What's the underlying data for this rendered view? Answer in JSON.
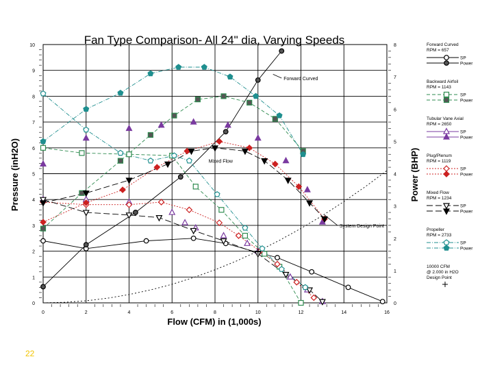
{
  "slide": {
    "number": "22"
  },
  "chart_data": {
    "type": "line",
    "title": "Fan Type Comparison- All 24\" dia, Varying Speeds",
    "xlabel": "Flow (CFM) in (1,000s)",
    "ylabel": "Pressure (inH2O)",
    "y2label": "Power (BHP)",
    "xlim": [
      0,
      16
    ],
    "ylim": [
      0,
      10
    ],
    "y2lim": [
      0,
      8
    ],
    "xticks": [
      "0",
      "2",
      "4",
      "6",
      "8",
      "10",
      "12",
      "14",
      "16"
    ],
    "yticks": [
      "0",
      "1",
      "2",
      "3",
      "4",
      "5",
      "6",
      "7",
      "8",
      "9",
      "10"
    ],
    "y2ticks": [
      "0",
      "1",
      "2",
      "3",
      "4",
      "5",
      "6",
      "7",
      "8"
    ],
    "grid": true,
    "legend_position": "right",
    "colors": {
      "forward": "#000000",
      "backward": "#2e8b4f",
      "tubular": "#7a3aa0",
      "plug": "#cc2020",
      "mixed": "#000000",
      "propeller": "#1f8f8f",
      "system": "#000000"
    },
    "series": [
      {
        "key": "fc_sp",
        "axis": "left",
        "x": [
          0,
          2,
          4.8,
          7,
          8.5,
          10,
          10.9,
          12.5,
          14.2,
          15.8
        ],
        "y": [
          2.4,
          2.1,
          2.4,
          2.5,
          2.3,
          1.95,
          1.75,
          1.2,
          0.6,
          0.05
        ]
      },
      {
        "key": "fc_power",
        "axis": "right",
        "x": [
          0,
          2,
          4.3,
          6.4,
          8.5,
          10,
          11.1
        ],
        "y": [
          0.5,
          1.8,
          2.8,
          3.9,
          5.3,
          6.9,
          7.8
        ]
      },
      {
        "key": "ba_sp",
        "axis": "left",
        "x": [
          0,
          1.8,
          4,
          6,
          7.1,
          8.3,
          9.4,
          10.3,
          11,
          12
        ],
        "y": [
          6.0,
          5.8,
          5.75,
          5.7,
          4.5,
          3.6,
          2.6,
          1.9,
          1.4,
          0
        ]
      },
      {
        "key": "ba_power",
        "axis": "right",
        "x": [
          0,
          1.8,
          3.6,
          5,
          6.1,
          7.2,
          8.4,
          9.6,
          10.8,
          12.1
        ],
        "y": [
          2.3,
          3.4,
          4.4,
          5.2,
          5.8,
          6.3,
          6.4,
          6.2,
          5.7,
          4.7
        ]
      },
      {
        "key": "tva_sp",
        "axis": "left",
        "x": [
          0,
          2,
          4,
          6,
          6.6,
          7.1,
          8.4,
          9.5,
          10,
          11.5,
          12.3,
          13
        ],
        "y": [
          4.0,
          4.0,
          3.9,
          3.5,
          3.1,
          2.9,
          2.6,
          2.3,
          2.0,
          1.0,
          0.5,
          0.05
        ]
      },
      {
        "key": "tva_power",
        "axis": "right",
        "x": [
          0,
          2,
          4,
          5.5,
          7,
          8.6,
          10,
          11.3,
          12.3,
          13
        ],
        "y": [
          4.3,
          5.1,
          5.4,
          5.5,
          5.6,
          5.5,
          5.1,
          4.4,
          3.5,
          2.5
        ]
      },
      {
        "key": "pp_sp",
        "axis": "left",
        "x": [
          0,
          2,
          4,
          5.5,
          6.8,
          8.2,
          9.1,
          10.1,
          10.9,
          11.8,
          12.6
        ],
        "y": [
          3.9,
          3.8,
          3.8,
          3.9,
          3.6,
          3.1,
          2.6,
          2.0,
          1.5,
          0.8,
          0.2
        ]
      },
      {
        "key": "pp_power",
        "axis": "right",
        "x": [
          0,
          2,
          3.7,
          5.3,
          6.7,
          8.2,
          9.6,
          10.8,
          11.9,
          13.1
        ],
        "y": [
          2.5,
          3.1,
          3.5,
          4.2,
          4.7,
          5.0,
          4.8,
          4.3,
          3.6,
          2.6
        ]
      },
      {
        "key": "mf_sp",
        "axis": "left",
        "x": [
          0,
          2,
          4,
          5.4,
          7,
          8.4,
          10,
          11.3,
          12.4,
          13
        ],
        "y": [
          4.0,
          3.5,
          3.4,
          3.3,
          2.8,
          2.4,
          1.9,
          1.1,
          0.5,
          0.05
        ]
      },
      {
        "key": "mf_power",
        "axis": "right",
        "x": [
          0,
          2,
          4,
          5.8,
          6.9,
          8,
          9.4,
          10.3,
          11.4,
          12.4,
          13.1
        ],
        "y": [
          3.1,
          3.4,
          3.8,
          4.3,
          4.7,
          4.8,
          4.7,
          4.4,
          3.8,
          3.1,
          2.6
        ]
      },
      {
        "key": "prop_sp",
        "axis": "left",
        "x": [
          0,
          2,
          3.6,
          5,
          6.1,
          6.8,
          8.1,
          9.4,
          10.2,
          11.1,
          12.2
        ],
        "y": [
          8.1,
          6.7,
          5.8,
          5.5,
          5.7,
          5.5,
          4.2,
          2.9,
          2.1,
          1.3,
          0.6
        ]
      },
      {
        "key": "prop_power",
        "axis": "right",
        "x": [
          0,
          2,
          3.6,
          5,
          6.3,
          7.5,
          8.7,
          9.9,
          11,
          12.1
        ],
        "y": [
          5.0,
          6.0,
          6.5,
          7.1,
          7.3,
          7.3,
          7.0,
          6.4,
          5.8,
          4.6
        ]
      },
      {
        "key": "system",
        "axis": "left",
        "x": [
          0,
          1,
          2,
          3,
          4,
          5,
          6,
          7,
          8,
          9,
          10,
          11,
          12,
          13,
          14,
          15,
          16
        ],
        "y": [
          0,
          0.02,
          0.08,
          0.18,
          0.32,
          0.5,
          0.72,
          0.98,
          1.28,
          1.62,
          2.0,
          2.42,
          2.88,
          3.38,
          3.92,
          4.5,
          5.12
        ]
      }
    ],
    "design_point": {
      "x": 10,
      "y": 2.0
    },
    "annotations": [
      {
        "text": "Forward Curved",
        "x": 11.1,
        "y": 8.7
      },
      {
        "text": "Mixed Flow",
        "x": 7.7,
        "y": 5.5
      },
      {
        "text": "System Design Point",
        "x": 13.7,
        "y": 3.0
      }
    ],
    "legend": [
      {
        "key": "forward",
        "title": "Forward Curved",
        "speed": "RPM = 657",
        "labels": [
          "SP",
          "Power"
        ]
      },
      {
        "key": "backward",
        "title": "Backward Airfoil",
        "speed": "RPM = 1143",
        "labels": [
          "SP",
          "Power"
        ]
      },
      {
        "key": "tubular",
        "title": "Tubular Vane Axial",
        "speed": "RPM = 2650",
        "labels": [
          "SP",
          "Power"
        ]
      },
      {
        "key": "plug",
        "title": "Plug/Plenum",
        "speed": "RPM = 1119",
        "labels": [
          "SP",
          "Power"
        ]
      },
      {
        "key": "mixed",
        "title": "Mixed Flow",
        "speed": "RPM = 1234",
        "labels": [
          "SP",
          "Power"
        ]
      },
      {
        "key": "propeller",
        "title": "Propeller",
        "speed": "RPM = 2733",
        "labels": [
          "SP",
          "Power"
        ]
      },
      {
        "key": "design",
        "title": "10000 CFM",
        "speed": "@ 2.000 in H2O",
        "labels": [
          "Design Point"
        ]
      }
    ]
  }
}
